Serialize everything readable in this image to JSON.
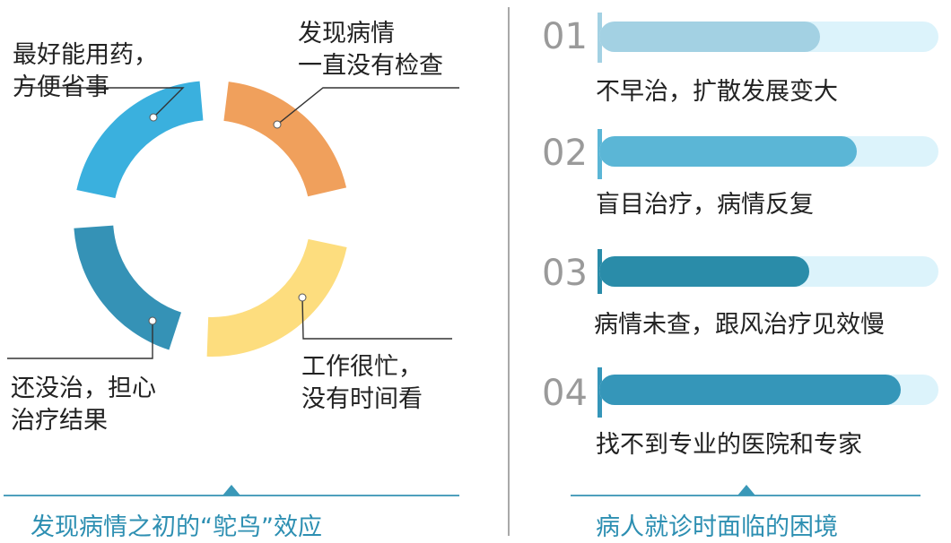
{
  "left_panel": {
    "annotations": [
      {
        "line1": "最好能用药，",
        "line2": "方便省事"
      },
      {
        "line1": "发现病情",
        "line2": "一直没有检查"
      },
      {
        "line1": "工作很忙，",
        "line2": "没有时间看"
      },
      {
        "line1": "还没治，担心",
        "line2": "治疗结果"
      }
    ],
    "segment_colors": [
      "#3ab0de",
      "#f0a05c",
      "#fddd7e",
      "#3592b6"
    ],
    "caption": "发现病情之初的“鸵鸟”效应"
  },
  "right_panel": {
    "items": [
      {
        "number": "01",
        "label": "不早治，扩散发展变大",
        "fill": 0.65,
        "fill_color": "#a3d1e3",
        "track_color": "#dcf3fb",
        "accent_color": "#a3d1e3"
      },
      {
        "number": "02",
        "label": "盲目治疗，病情反复",
        "fill": 0.76,
        "fill_color": "#5bb6d6",
        "track_color": "#dcf3fb",
        "accent_color": "#5bb6d6"
      },
      {
        "number": "03",
        "label": "病情未查，跟风治疗见效慢",
        "fill": 0.62,
        "fill_color": "#2a8ca9",
        "track_color": "#dcf3fb",
        "accent_color": "#2a8ca9"
      },
      {
        "number": "04",
        "label": "找不到专业的医院和专家",
        "fill": 0.89,
        "fill_color": "#3596b9",
        "track_color": "#dcf3fb",
        "accent_color": "#3596b9"
      }
    ],
    "caption": "病人就诊时面临的困境"
  }
}
